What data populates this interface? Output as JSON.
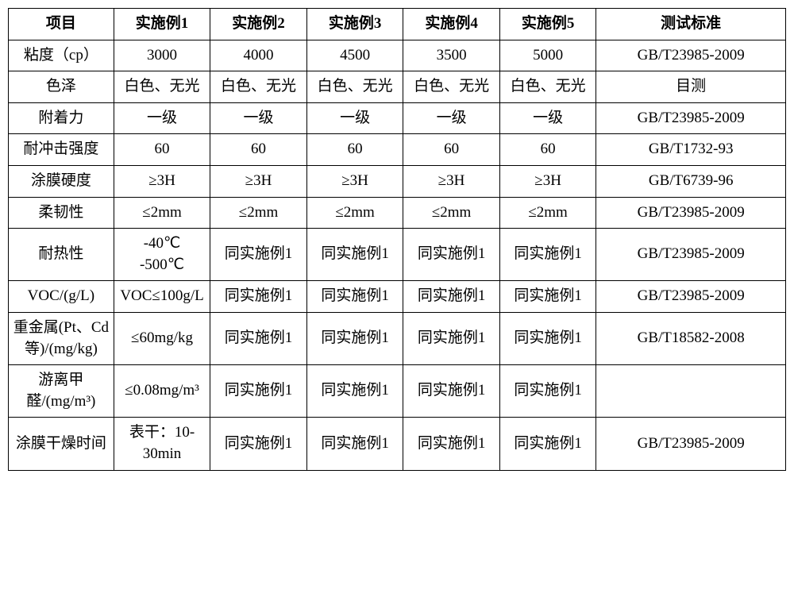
{
  "table": {
    "columns": [
      "项目",
      "实施例1",
      "实施例2",
      "实施例3",
      "实施例4",
      "实施例5",
      "测试标准"
    ],
    "rows": [
      [
        "粘度（cp）",
        "3000",
        "4000",
        "4500",
        "3500",
        "5000",
        "GB/T23985-2009"
      ],
      [
        "色泽",
        "白色、无光",
        "白色、无光",
        "白色、无光",
        "白色、无光",
        "白色、无光",
        "目测"
      ],
      [
        "附着力",
        "一级",
        "一级",
        "一级",
        "一级",
        "一级",
        "GB/T23985-2009"
      ],
      [
        "耐冲击强度",
        "60",
        "60",
        "60",
        "60",
        "60",
        "GB/T1732-93"
      ],
      [
        "涂膜硬度",
        "≥3H",
        "≥3H",
        "≥3H",
        "≥3H",
        "≥3H",
        "GB/T6739-96"
      ],
      [
        "柔韧性",
        "≤2mm",
        "≤2mm",
        "≤2mm",
        "≤2mm",
        "≤2mm",
        "GB/T23985-2009"
      ],
      [
        "耐热性",
        "-40℃\n-500℃",
        "同实施例1",
        "同实施例1",
        "同实施例1",
        "同实施例1",
        "GB/T23985-2009"
      ],
      [
        "VOC/(g/L)",
        "VOC≤100g/L",
        "同实施例1",
        "同实施例1",
        "同实施例1",
        "同实施例1",
        "GB/T23985-2009"
      ],
      [
        "重金属(Pt、Cd等)/(mg/kg)",
        "≤60mg/kg",
        "同实施例1",
        "同实施例1",
        "同实施例1",
        "同实施例1",
        "GB/T18582-2008"
      ],
      [
        "游离甲醛/(mg/m³)",
        "≤0.08mg/m³",
        "同实施例1",
        "同实施例1",
        "同实施例1",
        "同实施例1",
        ""
      ],
      [
        "涂膜干燥时间",
        "表干：10-30min",
        "同实施例1",
        "同实施例1",
        "同实施例1",
        "同实施例1",
        "GB/T23985-2009"
      ]
    ],
    "col_widths": [
      "118px",
      "108px",
      "108px",
      "108px",
      "108px",
      "108px",
      "212px"
    ],
    "border_color": "#000000",
    "background_color": "#ffffff",
    "font_size": 19,
    "cell_padding": "6px 4px"
  }
}
